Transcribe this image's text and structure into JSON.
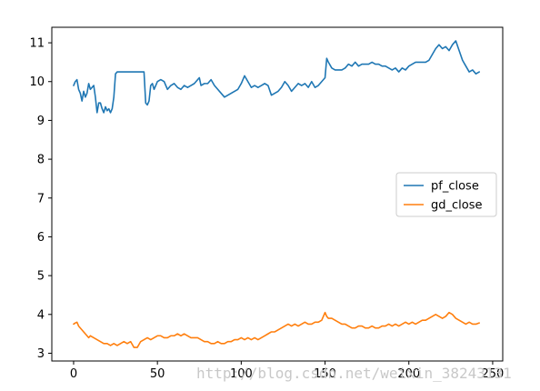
{
  "chart_data": {
    "type": "line",
    "xlim": [
      -13,
      256
    ],
    "ylim": [
      2.8,
      11.4
    ],
    "xticks": [
      0,
      50,
      100,
      150,
      200,
      250
    ],
    "yticks": [
      3,
      4,
      5,
      6,
      7,
      8,
      9,
      10,
      11
    ],
    "grid": false,
    "legend_position": "center-right",
    "series": [
      {
        "name": "pf_close",
        "color": "#1f77b4",
        "points": [
          [
            0,
            9.9
          ],
          [
            1,
            10.0
          ],
          [
            2,
            10.05
          ],
          [
            3,
            9.8
          ],
          [
            4,
            9.7
          ],
          [
            5,
            9.5
          ],
          [
            6,
            9.75
          ],
          [
            7,
            9.6
          ],
          [
            8,
            9.7
          ],
          [
            9,
            9.95
          ],
          [
            10,
            9.8
          ],
          [
            11,
            9.85
          ],
          [
            12,
            9.9
          ],
          [
            13,
            9.6
          ],
          [
            14,
            9.2
          ],
          [
            15,
            9.45
          ],
          [
            16,
            9.45
          ],
          [
            17,
            9.3
          ],
          [
            18,
            9.2
          ],
          [
            19,
            9.35
          ],
          [
            20,
            9.25
          ],
          [
            21,
            9.3
          ],
          [
            22,
            9.2
          ],
          [
            23,
            9.3
          ],
          [
            24,
            9.6
          ],
          [
            25,
            10.2
          ],
          [
            26,
            10.25
          ],
          [
            30,
            10.25
          ],
          [
            35,
            10.25
          ],
          [
            40,
            10.25
          ],
          [
            42,
            10.25
          ],
          [
            43,
            9.45
          ],
          [
            44,
            9.4
          ],
          [
            45,
            9.5
          ],
          [
            46,
            9.9
          ],
          [
            47,
            9.95
          ],
          [
            48,
            9.8
          ],
          [
            49,
            9.9
          ],
          [
            50,
            10.0
          ],
          [
            52,
            10.05
          ],
          [
            54,
            10.0
          ],
          [
            56,
            9.8
          ],
          [
            58,
            9.9
          ],
          [
            60,
            9.95
          ],
          [
            62,
            9.85
          ],
          [
            64,
            9.8
          ],
          [
            66,
            9.9
          ],
          [
            68,
            9.85
          ],
          [
            70,
            9.9
          ],
          [
            72,
            9.95
          ],
          [
            74,
            10.05
          ],
          [
            75,
            10.1
          ],
          [
            76,
            9.9
          ],
          [
            78,
            9.95
          ],
          [
            80,
            9.95
          ],
          [
            82,
            10.05
          ],
          [
            84,
            9.9
          ],
          [
            86,
            9.8
          ],
          [
            88,
            9.7
          ],
          [
            90,
            9.6
          ],
          [
            92,
            9.65
          ],
          [
            94,
            9.7
          ],
          [
            96,
            9.75
          ],
          [
            98,
            9.8
          ],
          [
            100,
            9.95
          ],
          [
            102,
            10.15
          ],
          [
            104,
            10.0
          ],
          [
            106,
            9.85
          ],
          [
            108,
            9.9
          ],
          [
            110,
            9.85
          ],
          [
            112,
            9.9
          ],
          [
            114,
            9.95
          ],
          [
            116,
            9.9
          ],
          [
            118,
            9.65
          ],
          [
            120,
            9.7
          ],
          [
            122,
            9.75
          ],
          [
            124,
            9.85
          ],
          [
            126,
            10.0
          ],
          [
            128,
            9.9
          ],
          [
            130,
            9.75
          ],
          [
            132,
            9.85
          ],
          [
            134,
            9.95
          ],
          [
            136,
            9.9
          ],
          [
            138,
            9.95
          ],
          [
            140,
            9.85
          ],
          [
            142,
            10.0
          ],
          [
            144,
            9.85
          ],
          [
            146,
            9.9
          ],
          [
            148,
            10.0
          ],
          [
            150,
            10.1
          ],
          [
            151,
            10.6
          ],
          [
            152,
            10.5
          ],
          [
            154,
            10.35
          ],
          [
            156,
            10.3
          ],
          [
            158,
            10.3
          ],
          [
            160,
            10.3
          ],
          [
            162,
            10.35
          ],
          [
            164,
            10.45
          ],
          [
            166,
            10.4
          ],
          [
            168,
            10.5
          ],
          [
            170,
            10.4
          ],
          [
            172,
            10.45
          ],
          [
            174,
            10.45
          ],
          [
            176,
            10.45
          ],
          [
            178,
            10.5
          ],
          [
            180,
            10.45
          ],
          [
            182,
            10.45
          ],
          [
            184,
            10.4
          ],
          [
            186,
            10.4
          ],
          [
            188,
            10.35
          ],
          [
            190,
            10.3
          ],
          [
            192,
            10.35
          ],
          [
            194,
            10.25
          ],
          [
            196,
            10.35
          ],
          [
            198,
            10.3
          ],
          [
            200,
            10.4
          ],
          [
            202,
            10.45
          ],
          [
            204,
            10.5
          ],
          [
            206,
            10.5
          ],
          [
            208,
            10.5
          ],
          [
            210,
            10.5
          ],
          [
            212,
            10.55
          ],
          [
            214,
            10.7
          ],
          [
            216,
            10.85
          ],
          [
            218,
            10.95
          ],
          [
            220,
            10.85
          ],
          [
            222,
            10.9
          ],
          [
            224,
            10.8
          ],
          [
            226,
            10.95
          ],
          [
            228,
            11.05
          ],
          [
            230,
            10.8
          ],
          [
            232,
            10.55
          ],
          [
            234,
            10.4
          ],
          [
            236,
            10.25
          ],
          [
            238,
            10.3
          ],
          [
            240,
            10.2
          ],
          [
            242,
            10.25
          ]
        ]
      },
      {
        "name": "gd_close",
        "color": "#ff7f0e",
        "points": [
          [
            0,
            3.75
          ],
          [
            1,
            3.78
          ],
          [
            2,
            3.8
          ],
          [
            3,
            3.7
          ],
          [
            4,
            3.65
          ],
          [
            5,
            3.6
          ],
          [
            6,
            3.55
          ],
          [
            7,
            3.5
          ],
          [
            8,
            3.45
          ],
          [
            9,
            3.4
          ],
          [
            10,
            3.45
          ],
          [
            12,
            3.4
          ],
          [
            14,
            3.35
          ],
          [
            16,
            3.3
          ],
          [
            18,
            3.25
          ],
          [
            20,
            3.25
          ],
          [
            22,
            3.2
          ],
          [
            24,
            3.25
          ],
          [
            26,
            3.2
          ],
          [
            28,
            3.25
          ],
          [
            30,
            3.3
          ],
          [
            32,
            3.25
          ],
          [
            34,
            3.3
          ],
          [
            36,
            3.15
          ],
          [
            38,
            3.15
          ],
          [
            40,
            3.3
          ],
          [
            42,
            3.35
          ],
          [
            44,
            3.4
          ],
          [
            46,
            3.35
          ],
          [
            48,
            3.4
          ],
          [
            50,
            3.45
          ],
          [
            52,
            3.45
          ],
          [
            54,
            3.4
          ],
          [
            56,
            3.4
          ],
          [
            58,
            3.45
          ],
          [
            60,
            3.45
          ],
          [
            62,
            3.5
          ],
          [
            64,
            3.45
          ],
          [
            66,
            3.5
          ],
          [
            68,
            3.45
          ],
          [
            70,
            3.4
          ],
          [
            72,
            3.4
          ],
          [
            74,
            3.4
          ],
          [
            76,
            3.35
          ],
          [
            78,
            3.3
          ],
          [
            80,
            3.3
          ],
          [
            82,
            3.25
          ],
          [
            84,
            3.25
          ],
          [
            86,
            3.3
          ],
          [
            88,
            3.25
          ],
          [
            90,
            3.25
          ],
          [
            92,
            3.3
          ],
          [
            94,
            3.3
          ],
          [
            96,
            3.35
          ],
          [
            98,
            3.35
          ],
          [
            100,
            3.4
          ],
          [
            102,
            3.35
          ],
          [
            104,
            3.4
          ],
          [
            106,
            3.35
          ],
          [
            108,
            3.4
          ],
          [
            110,
            3.35
          ],
          [
            112,
            3.4
          ],
          [
            114,
            3.45
          ],
          [
            116,
            3.5
          ],
          [
            118,
            3.55
          ],
          [
            120,
            3.55
          ],
          [
            122,
            3.6
          ],
          [
            124,
            3.65
          ],
          [
            126,
            3.7
          ],
          [
            128,
            3.75
          ],
          [
            130,
            3.7
          ],
          [
            132,
            3.75
          ],
          [
            134,
            3.7
          ],
          [
            136,
            3.75
          ],
          [
            138,
            3.8
          ],
          [
            140,
            3.75
          ],
          [
            142,
            3.75
          ],
          [
            144,
            3.8
          ],
          [
            146,
            3.8
          ],
          [
            148,
            3.85
          ],
          [
            150,
            4.05
          ],
          [
            151,
            3.95
          ],
          [
            152,
            3.9
          ],
          [
            154,
            3.9
          ],
          [
            156,
            3.85
          ],
          [
            158,
            3.8
          ],
          [
            160,
            3.75
          ],
          [
            162,
            3.75
          ],
          [
            164,
            3.7
          ],
          [
            166,
            3.65
          ],
          [
            168,
            3.65
          ],
          [
            170,
            3.7
          ],
          [
            172,
            3.7
          ],
          [
            174,
            3.65
          ],
          [
            176,
            3.65
          ],
          [
            178,
            3.7
          ],
          [
            180,
            3.65
          ],
          [
            182,
            3.65
          ],
          [
            184,
            3.7
          ],
          [
            186,
            3.7
          ],
          [
            188,
            3.75
          ],
          [
            190,
            3.7
          ],
          [
            192,
            3.75
          ],
          [
            194,
            3.7
          ],
          [
            196,
            3.75
          ],
          [
            198,
            3.8
          ],
          [
            200,
            3.75
          ],
          [
            202,
            3.8
          ],
          [
            204,
            3.75
          ],
          [
            206,
            3.8
          ],
          [
            208,
            3.85
          ],
          [
            210,
            3.85
          ],
          [
            212,
            3.9
          ],
          [
            214,
            3.95
          ],
          [
            216,
            4.0
          ],
          [
            218,
            3.95
          ],
          [
            220,
            3.9
          ],
          [
            222,
            3.95
          ],
          [
            224,
            4.05
          ],
          [
            226,
            4.0
          ],
          [
            228,
            3.9
          ],
          [
            230,
            3.85
          ],
          [
            232,
            3.8
          ],
          [
            234,
            3.75
          ],
          [
            236,
            3.8
          ],
          [
            238,
            3.75
          ],
          [
            240,
            3.75
          ],
          [
            242,
            3.78
          ]
        ]
      }
    ]
  },
  "watermark": "http://blog.csdn.net/weixin_38243131"
}
